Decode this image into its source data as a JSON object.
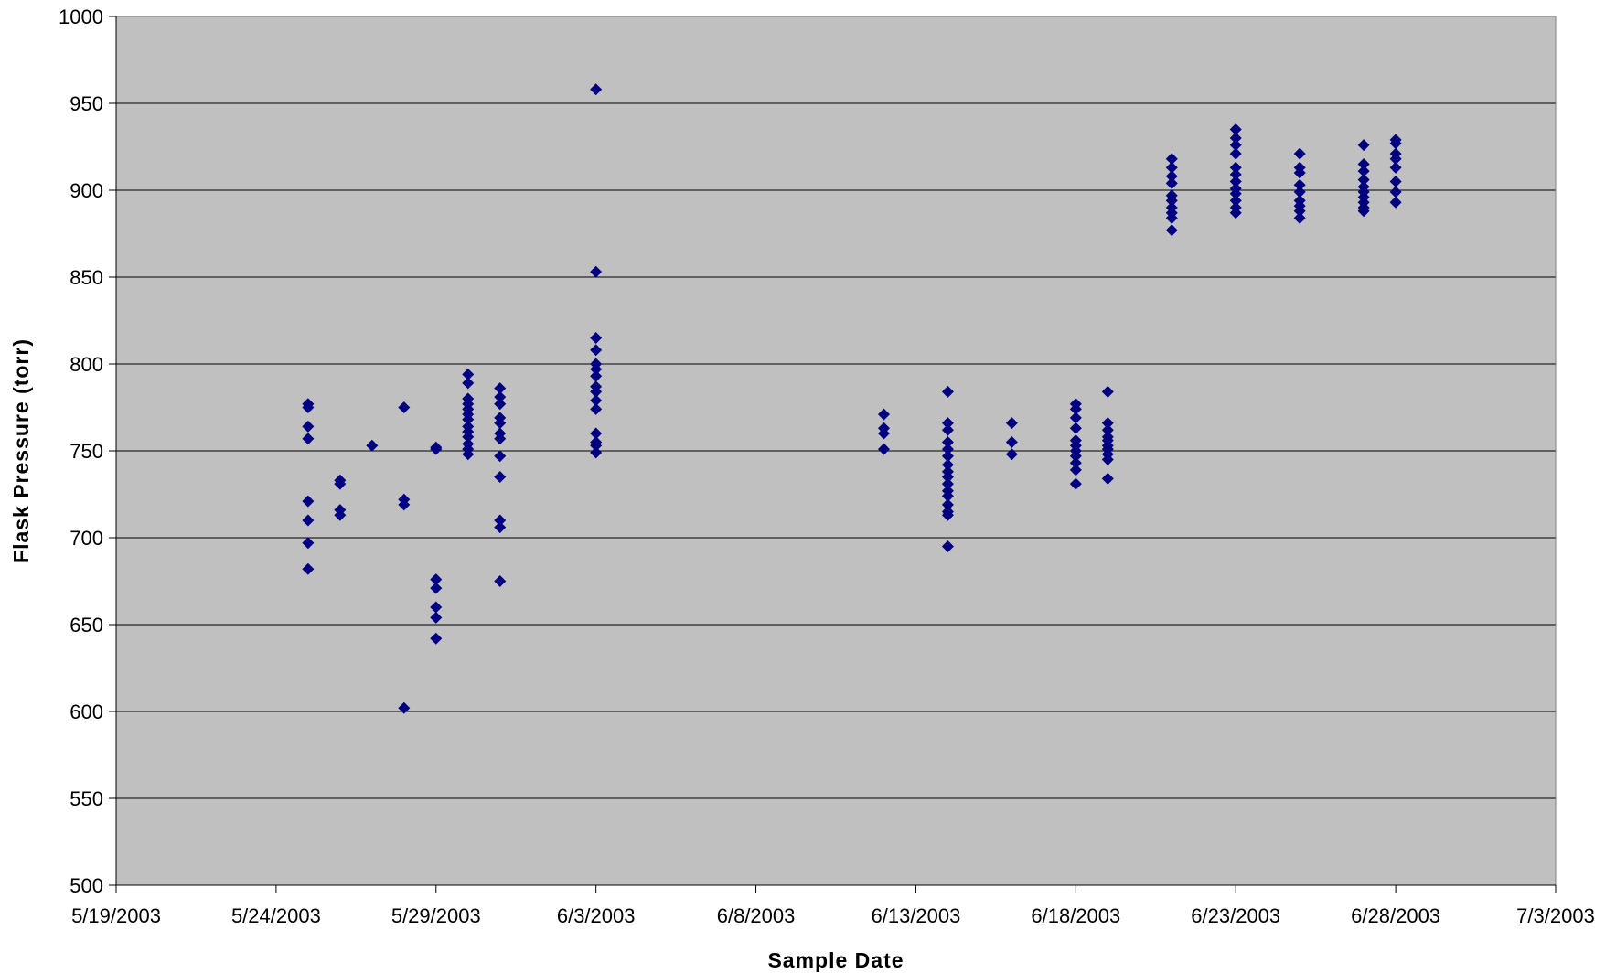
{
  "chart_data": {
    "type": "scatter",
    "title": "",
    "xlabel": "Sample Date",
    "ylabel": "Flask Pressure (torr)",
    "x_type": "date",
    "xlim": [
      "5/19/2003",
      "7/3/2003"
    ],
    "ylim": [
      500,
      1000
    ],
    "x_ticks": [
      "5/19/2003",
      "5/24/2003",
      "5/29/2003",
      "6/3/2003",
      "6/8/2003",
      "6/13/2003",
      "6/18/2003",
      "6/23/2003",
      "6/28/2003",
      "7/3/2003"
    ],
    "y_ticks": [
      500,
      550,
      600,
      650,
      700,
      750,
      800,
      850,
      900,
      950,
      1000
    ],
    "grid": "horizontal",
    "legend": "none",
    "plot_background": "#C0C0C0",
    "marker_color": "#000080",
    "marker_shape": "diamond",
    "series": [
      {
        "points": [
          {
            "x": "5/25/2003",
            "y": 777
          },
          {
            "x": "5/25/2003",
            "y": 775
          },
          {
            "x": "5/25/2003",
            "y": 764
          },
          {
            "x": "5/25/2003",
            "y": 757
          },
          {
            "x": "5/25/2003",
            "y": 721
          },
          {
            "x": "5/25/2003",
            "y": 710
          },
          {
            "x": "5/25/2003",
            "y": 697
          },
          {
            "x": "5/25/2003",
            "y": 682
          },
          {
            "x": "5/26/2003",
            "y": 733
          },
          {
            "x": "5/26/2003",
            "y": 731
          },
          {
            "x": "5/26/2003",
            "y": 716
          },
          {
            "x": "5/26/2003",
            "y": 713
          },
          {
            "x": "5/27/2003",
            "y": 753
          },
          {
            "x": "5/28/2003",
            "y": 775
          },
          {
            "x": "5/28/2003",
            "y": 722
          },
          {
            "x": "5/28/2003",
            "y": 719
          },
          {
            "x": "5/28/2003",
            "y": 602
          },
          {
            "x": "5/29/2003",
            "y": 752
          },
          {
            "x": "5/29/2003",
            "y": 751
          },
          {
            "x": "5/29/2003",
            "y": 676
          },
          {
            "x": "5/29/2003",
            "y": 671
          },
          {
            "x": "5/29/2003",
            "y": 660
          },
          {
            "x": "5/29/2003",
            "y": 654
          },
          {
            "x": "5/29/2003",
            "y": 642
          },
          {
            "x": "5/30/2003",
            "y": 794
          },
          {
            "x": "5/30/2003",
            "y": 789
          },
          {
            "x": "5/30/2003",
            "y": 780
          },
          {
            "x": "5/30/2003",
            "y": 777
          },
          {
            "x": "5/30/2003",
            "y": 774
          },
          {
            "x": "5/30/2003",
            "y": 771
          },
          {
            "x": "5/30/2003",
            "y": 768
          },
          {
            "x": "5/30/2003",
            "y": 764
          },
          {
            "x": "5/30/2003",
            "y": 761
          },
          {
            "x": "5/30/2003",
            "y": 758
          },
          {
            "x": "5/30/2003",
            "y": 754
          },
          {
            "x": "5/30/2003",
            "y": 751
          },
          {
            "x": "5/30/2003",
            "y": 748
          },
          {
            "x": "5/31/2003",
            "y": 786
          },
          {
            "x": "5/31/2003",
            "y": 781
          },
          {
            "x": "5/31/2003",
            "y": 777
          },
          {
            "x": "5/31/2003",
            "y": 769
          },
          {
            "x": "5/31/2003",
            "y": 766
          },
          {
            "x": "5/31/2003",
            "y": 760
          },
          {
            "x": "5/31/2003",
            "y": 757
          },
          {
            "x": "5/31/2003",
            "y": 747
          },
          {
            "x": "5/31/2003",
            "y": 735
          },
          {
            "x": "5/31/2003",
            "y": 710
          },
          {
            "x": "5/31/2003",
            "y": 706
          },
          {
            "x": "5/31/2003",
            "y": 675
          },
          {
            "x": "6/3/2003",
            "y": 958
          },
          {
            "x": "6/3/2003",
            "y": 853
          },
          {
            "x": "6/3/2003",
            "y": 815
          },
          {
            "x": "6/3/2003",
            "y": 808
          },
          {
            "x": "6/3/2003",
            "y": 800
          },
          {
            "x": "6/3/2003",
            "y": 797
          },
          {
            "x": "6/3/2003",
            "y": 793
          },
          {
            "x": "6/3/2003",
            "y": 787
          },
          {
            "x": "6/3/2003",
            "y": 784
          },
          {
            "x": "6/3/2003",
            "y": 779
          },
          {
            "x": "6/3/2003",
            "y": 774
          },
          {
            "x": "6/3/2003",
            "y": 760
          },
          {
            "x": "6/3/2003",
            "y": 755
          },
          {
            "x": "6/3/2003",
            "y": 753
          },
          {
            "x": "6/3/2003",
            "y": 749
          },
          {
            "x": "6/12/2003",
            "y": 771
          },
          {
            "x": "6/12/2003",
            "y": 763
          },
          {
            "x": "6/12/2003",
            "y": 760
          },
          {
            "x": "6/12/2003",
            "y": 751
          },
          {
            "x": "6/14/2003",
            "y": 784
          },
          {
            "x": "6/14/2003",
            "y": 766
          },
          {
            "x": "6/14/2003",
            "y": 762
          },
          {
            "x": "6/14/2003",
            "y": 755
          },
          {
            "x": "6/14/2003",
            "y": 751
          },
          {
            "x": "6/14/2003",
            "y": 747
          },
          {
            "x": "6/14/2003",
            "y": 742
          },
          {
            "x": "6/14/2003",
            "y": 738
          },
          {
            "x": "6/14/2003",
            "y": 735
          },
          {
            "x": "6/14/2003",
            "y": 731
          },
          {
            "x": "6/14/2003",
            "y": 727
          },
          {
            "x": "6/14/2003",
            "y": 724
          },
          {
            "x": "6/14/2003",
            "y": 719
          },
          {
            "x": "6/14/2003",
            "y": 715
          },
          {
            "x": "6/14/2003",
            "y": 713
          },
          {
            "x": "6/14/2003",
            "y": 695
          },
          {
            "x": "6/16/2003",
            "y": 766
          },
          {
            "x": "6/16/2003",
            "y": 755
          },
          {
            "x": "6/16/2003",
            "y": 748
          },
          {
            "x": "6/18/2003",
            "y": 777
          },
          {
            "x": "6/18/2003",
            "y": 774
          },
          {
            "x": "6/18/2003",
            "y": 769
          },
          {
            "x": "6/18/2003",
            "y": 763
          },
          {
            "x": "6/18/2003",
            "y": 756
          },
          {
            "x": "6/18/2003",
            "y": 753
          },
          {
            "x": "6/18/2003",
            "y": 750
          },
          {
            "x": "6/18/2003",
            "y": 747
          },
          {
            "x": "6/18/2003",
            "y": 743
          },
          {
            "x": "6/18/2003",
            "y": 739
          },
          {
            "x": "6/18/2003",
            "y": 731
          },
          {
            "x": "6/19/2003",
            "y": 784
          },
          {
            "x": "6/19/2003",
            "y": 766
          },
          {
            "x": "6/19/2003",
            "y": 762
          },
          {
            "x": "6/19/2003",
            "y": 758
          },
          {
            "x": "6/19/2003",
            "y": 756
          },
          {
            "x": "6/19/2003",
            "y": 753
          },
          {
            "x": "6/19/2003",
            "y": 751
          },
          {
            "x": "6/19/2003",
            "y": 748
          },
          {
            "x": "6/19/2003",
            "y": 745
          },
          {
            "x": "6/19/2003",
            "y": 734
          },
          {
            "x": "6/21/2003",
            "y": 918
          },
          {
            "x": "6/21/2003",
            "y": 913
          },
          {
            "x": "6/21/2003",
            "y": 908
          },
          {
            "x": "6/21/2003",
            "y": 904
          },
          {
            "x": "6/21/2003",
            "y": 897
          },
          {
            "x": "6/21/2003",
            "y": 894
          },
          {
            "x": "6/21/2003",
            "y": 890
          },
          {
            "x": "6/21/2003",
            "y": 887
          },
          {
            "x": "6/21/2003",
            "y": 884
          },
          {
            "x": "6/21/2003",
            "y": 877
          },
          {
            "x": "6/23/2003",
            "y": 935
          },
          {
            "x": "6/23/2003",
            "y": 930
          },
          {
            "x": "6/23/2003",
            "y": 926
          },
          {
            "x": "6/23/2003",
            "y": 921
          },
          {
            "x": "6/23/2003",
            "y": 913
          },
          {
            "x": "6/23/2003",
            "y": 909
          },
          {
            "x": "6/23/2003",
            "y": 905
          },
          {
            "x": "6/23/2003",
            "y": 901
          },
          {
            "x": "6/23/2003",
            "y": 898
          },
          {
            "x": "6/23/2003",
            "y": 894
          },
          {
            "x": "6/23/2003",
            "y": 890
          },
          {
            "x": "6/23/2003",
            "y": 887
          },
          {
            "x": "6/25/2003",
            "y": 921
          },
          {
            "x": "6/25/2003",
            "y": 913
          },
          {
            "x": "6/25/2003",
            "y": 910
          },
          {
            "x": "6/25/2003",
            "y": 903
          },
          {
            "x": "6/25/2003",
            "y": 899
          },
          {
            "x": "6/25/2003",
            "y": 894
          },
          {
            "x": "6/25/2003",
            "y": 891
          },
          {
            "x": "6/25/2003",
            "y": 888
          },
          {
            "x": "6/25/2003",
            "y": 884
          },
          {
            "x": "6/27/2003",
            "y": 926
          },
          {
            "x": "6/27/2003",
            "y": 915
          },
          {
            "x": "6/27/2003",
            "y": 911
          },
          {
            "x": "6/27/2003",
            "y": 906
          },
          {
            "x": "6/27/2003",
            "y": 902
          },
          {
            "x": "6/27/2003",
            "y": 899
          },
          {
            "x": "6/27/2003",
            "y": 896
          },
          {
            "x": "6/27/2003",
            "y": 893
          },
          {
            "x": "6/27/2003",
            "y": 890
          },
          {
            "x": "6/27/2003",
            "y": 888
          },
          {
            "x": "6/28/2003",
            "y": 929
          },
          {
            "x": "6/28/2003",
            "y": 927
          },
          {
            "x": "6/28/2003",
            "y": 921
          },
          {
            "x": "6/28/2003",
            "y": 918
          },
          {
            "x": "6/28/2003",
            "y": 913
          },
          {
            "x": "6/28/2003",
            "y": 905
          },
          {
            "x": "6/28/2003",
            "y": 899
          },
          {
            "x": "6/28/2003",
            "y": 893
          }
        ]
      }
    ]
  }
}
